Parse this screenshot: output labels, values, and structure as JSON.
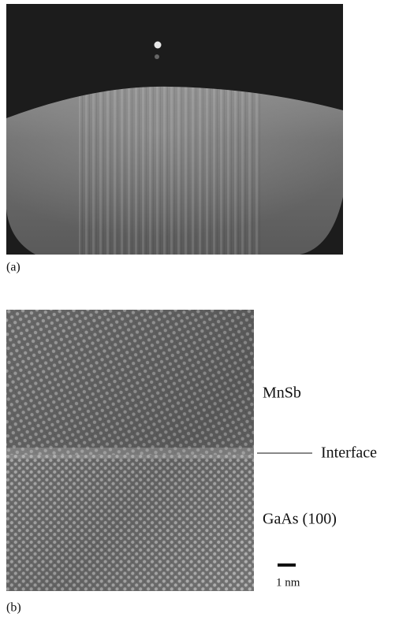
{
  "figure": {
    "panels": [
      {
        "label": "(a)"
      },
      {
        "label": "(b)",
        "annotations": {
          "top": "MnSb",
          "interface": "Interface",
          "bottom": "GaAs (100)"
        },
        "scale_bar": "1 nm"
      }
    ]
  }
}
